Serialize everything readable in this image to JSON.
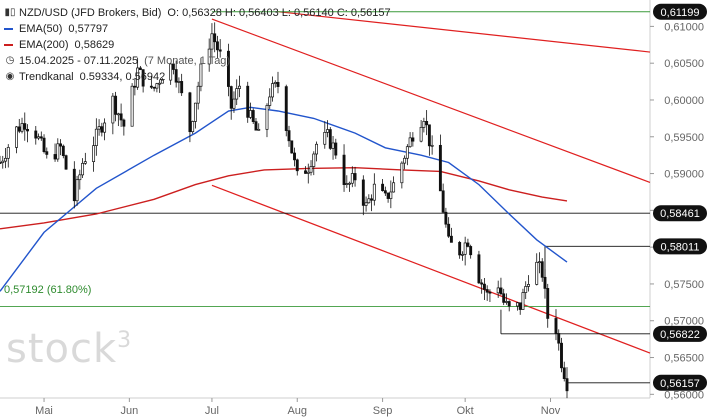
{
  "header": {
    "instrument": "NZD/USD (JFD Brokers, Bid)",
    "ohlc": "O: 0,56328   H: 0,56403   L: 0,56140   C: 0,56157",
    "ema50_label": "EMA(50)",
    "ema50_value": "0,57797",
    "ema200_label": "EMA(200)",
    "ema200_value": "0,58629",
    "period": "15.04.2025 - 07.11.2025",
    "period_detail": "(7 Monate, 1 Tag)",
    "trendkanal_label": "Trendkanal",
    "trendkanal_value": "0.59334, 0.56942"
  },
  "fibo_label": "0,57192 (61.80%)",
  "logo_text": "stock",
  "logo_sup": "3",
  "colors": {
    "ema50": "#2255cc",
    "ema200": "#cc1f1f",
    "trend": "#e02020",
    "fibo": "#3a9a3a",
    "candle": "#111111",
    "badge": "#111111",
    "grid": "#e6e6e6"
  },
  "chart_data": {
    "type": "candlestick",
    "x_range": [
      "2025-04-15",
      "2025-11-07"
    ],
    "ylim": [
      0.5595,
      0.6125
    ],
    "y_ticks": [
      0.61,
      0.605,
      0.6,
      0.595,
      0.59,
      0.585,
      0.58,
      0.575,
      0.57,
      0.565,
      0.56
    ],
    "y_tick_labels": [
      "0,61000",
      "0,60500",
      "0,60000",
      "0,59500",
      "0,59000",
      "0,58500",
      "0,58000",
      "0,57500",
      "0,57000",
      "0,56500",
      "0,56000"
    ],
    "x_labels": [
      {
        "date": "2025-05-01",
        "label": "Mai"
      },
      {
        "date": "2025-06-01",
        "label": "Jun"
      },
      {
        "date": "2025-07-01",
        "label": "Jul"
      },
      {
        "date": "2025-08-01",
        "label": "Aug"
      },
      {
        "date": "2025-09-01",
        "label": "Sep"
      },
      {
        "date": "2025-10-01",
        "label": "Okt"
      },
      {
        "date": "2025-11-01",
        "label": "Nov"
      }
    ],
    "close_series": [
      [
        "2025-04-15",
        0.5915
      ],
      [
        "2025-04-21",
        0.596
      ],
      [
        "2025-04-24",
        0.597
      ],
      [
        "2025-04-28",
        0.5955
      ],
      [
        "2025-05-02",
        0.592
      ],
      [
        "2025-05-07",
        0.5935
      ],
      [
        "2025-05-12",
        0.5865
      ],
      [
        "2025-05-15",
        0.5915
      ],
      [
        "2025-05-20",
        0.595
      ],
      [
        "2025-05-26",
        0.6
      ],
      [
        "2025-05-30",
        0.5965
      ],
      [
        "2025-06-04",
        0.604
      ],
      [
        "2025-06-09",
        0.601
      ],
      [
        "2025-06-13",
        0.6035
      ],
      [
        "2025-06-17",
        0.605
      ],
      [
        "2025-06-20",
        0.6005
      ],
      [
        "2025-06-23",
        0.596
      ],
      [
        "2025-06-27",
        0.604
      ],
      [
        "2025-07-01",
        0.609
      ],
      [
        "2025-07-04",
        0.606
      ],
      [
        "2025-07-08",
        0.599
      ],
      [
        "2025-07-11",
        0.602
      ],
      [
        "2025-07-15",
        0.5975
      ],
      [
        "2025-07-18",
        0.595
      ],
      [
        "2025-07-22",
        0.601
      ],
      [
        "2025-07-25",
        0.602
      ],
      [
        "2025-07-29",
        0.595
      ],
      [
        "2025-08-01",
        0.5895
      ],
      [
        "2025-08-05",
        0.591
      ],
      [
        "2025-08-08",
        0.594
      ],
      [
        "2025-08-12",
        0.595
      ],
      [
        "2025-08-15",
        0.593
      ],
      [
        "2025-08-19",
        0.588
      ],
      [
        "2025-08-22",
        0.5895
      ],
      [
        "2025-08-26",
        0.5855
      ],
      [
        "2025-08-29",
        0.588
      ],
      [
        "2025-09-02",
        0.5865
      ],
      [
        "2025-09-05",
        0.5885
      ],
      [
        "2025-09-09",
        0.5925
      ],
      [
        "2025-09-12",
        0.5955
      ],
      [
        "2025-09-16",
        0.598
      ],
      [
        "2025-09-18",
        0.5945
      ],
      [
        "2025-09-22",
        0.5875
      ],
      [
        "2025-09-25",
        0.5805
      ],
      [
        "2025-09-29",
        0.5795
      ],
      [
        "2025-10-02",
        0.581
      ],
      [
        "2025-10-06",
        0.576
      ],
      [
        "2025-10-09",
        0.5735
      ],
      [
        "2025-10-13",
        0.575
      ],
      [
        "2025-10-15",
        0.5725
      ],
      [
        "2025-10-17",
        0.5715
      ],
      [
        "2025-10-21",
        0.572
      ],
      [
        "2025-10-24",
        0.576
      ],
      [
        "2025-10-27",
        0.5775
      ],
      [
        "2025-10-29",
        0.5765
      ],
      [
        "2025-10-31",
        0.5705
      ],
      [
        "2025-11-03",
        0.569
      ],
      [
        "2025-11-05",
        0.5645
      ],
      [
        "2025-11-07",
        0.56157
      ]
    ],
    "ema50": [
      [
        "2025-04-15",
        0.574
      ],
      [
        "2025-05-01",
        0.582
      ],
      [
        "2025-05-20",
        0.588
      ],
      [
        "2025-06-10",
        0.5925
      ],
      [
        "2025-06-25",
        0.5955
      ],
      [
        "2025-07-07",
        0.5985
      ],
      [
        "2025-07-15",
        0.599
      ],
      [
        "2025-07-25",
        0.5985
      ],
      [
        "2025-08-07",
        0.5975
      ],
      [
        "2025-08-22",
        0.5955
      ],
      [
        "2025-09-02",
        0.5935
      ],
      [
        "2025-09-15",
        0.5925
      ],
      [
        "2025-09-25",
        0.5915
      ],
      [
        "2025-10-06",
        0.5885
      ],
      [
        "2025-10-17",
        0.5845
      ],
      [
        "2025-10-27",
        0.581
      ],
      [
        "2025-11-07",
        0.57797
      ]
    ],
    "ema200": [
      [
        "2025-04-15",
        0.5825
      ],
      [
        "2025-05-01",
        0.5833
      ],
      [
        "2025-05-20",
        0.5845
      ],
      [
        "2025-06-10",
        0.5865
      ],
      [
        "2025-06-25",
        0.5885
      ],
      [
        "2025-07-07",
        0.5897
      ],
      [
        "2025-07-20",
        0.5905
      ],
      [
        "2025-08-05",
        0.5907
      ],
      [
        "2025-08-22",
        0.5908
      ],
      [
        "2025-09-08",
        0.5905
      ],
      [
        "2025-09-22",
        0.5903
      ],
      [
        "2025-10-06",
        0.589
      ],
      [
        "2025-10-17",
        0.5878
      ],
      [
        "2025-10-29",
        0.5868
      ],
      [
        "2025-11-07",
        0.58629
      ]
    ],
    "trend_lines": [
      {
        "name": "trend-upper-main",
        "from": [
          "2025-07-01",
          0.611
        ],
        "to": [
          "2025-12-10",
          0.5884
        ]
      },
      {
        "name": "trend-lower-main",
        "from": [
          "2025-07-01",
          0.5884
        ],
        "to": [
          "2025-12-10",
          0.5652
        ]
      },
      {
        "name": "trend-upper-long",
        "from": [
          "2025-07-25",
          0.612
        ],
        "to": [
          "2025-12-10",
          0.6064
        ]
      }
    ],
    "horizontal_levels": [
      {
        "value": 0.61199,
        "label": "0,61199",
        "from": "2025-07-01",
        "color": "fibo"
      },
      {
        "value": 0.58461,
        "label": "0,58461",
        "from": "2025-04-15",
        "color": "candle"
      },
      {
        "value": 0.58011,
        "label": "0,58011",
        "from": "2025-10-30",
        "color": "candle"
      },
      {
        "value": 0.57192,
        "label": "",
        "from": "2025-04-15",
        "color": "fibo"
      },
      {
        "value": 0.56822,
        "label": "0,56822",
        "from": "2025-10-14",
        "color": "candle"
      },
      {
        "value": 0.56157,
        "label": "0,56157",
        "from": "2025-11-07",
        "color": "candle"
      }
    ]
  }
}
